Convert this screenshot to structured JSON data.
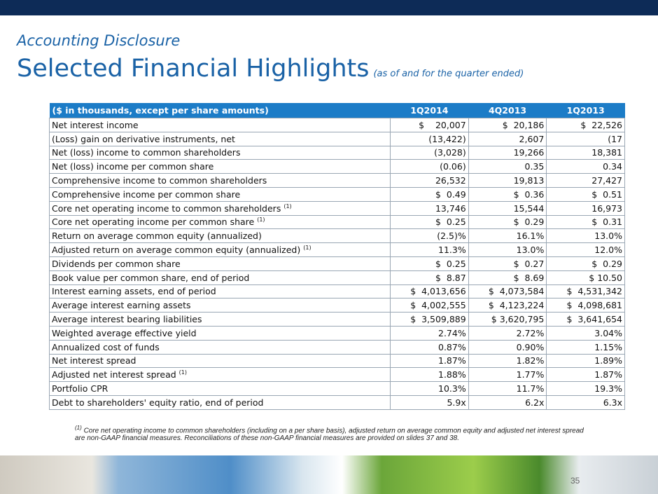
{
  "header": {
    "subtitle": "Accounting Disclosure",
    "title": "Selected Financial Highlights",
    "title_note": "(as of and for the quarter ended)"
  },
  "table": {
    "columns": [
      "($ in thousands, except per share amounts)",
      "1Q2014",
      "4Q2013",
      "1Q2013"
    ],
    "rows": [
      {
        "label": "Net interest income",
        "values": [
          "$    20,007",
          "$  20,186",
          "$  22,526"
        ]
      },
      {
        "label": "(Loss) gain on derivative instruments, net",
        "values": [
          "(13,422)",
          "2,607",
          "(17"
        ]
      },
      {
        "label": "Net (loss) income to common shareholders",
        "values": [
          "(3,028)",
          "19,266",
          "18,381"
        ]
      },
      {
        "label": "Net (loss) income per common share",
        "values": [
          "(0.06)",
          "0.35",
          "0.34"
        ]
      },
      {
        "label": "Comprehensive income to common shareholders",
        "values": [
          "26,532",
          "19,813",
          "27,427"
        ]
      },
      {
        "label": "Comprehensive income per common share",
        "values": [
          "$  0.49",
          "$  0.36",
          "$  0.51"
        ]
      },
      {
        "label": "Core net operating income to common shareholders",
        "note": "(1)",
        "values": [
          "13,746",
          "15,544",
          "16,973"
        ]
      },
      {
        "label": "Core net operating income per common share",
        "note": "(1)",
        "values": [
          "$  0.25",
          "$  0.29",
          "$  0.31"
        ]
      },
      {
        "label": "Return on average common equity (annualized)",
        "values": [
          "(2.5)%",
          "16.1%",
          "13.0%"
        ]
      },
      {
        "label": "Adjusted return on average common equity (annualized)",
        "note": "(1)",
        "values": [
          "11.3%",
          "13.0%",
          "12.0%"
        ]
      },
      {
        "label": "Dividends per common share",
        "values": [
          "$  0.25",
          "$  0.27",
          "$  0.29"
        ]
      },
      {
        "label": "Book value per common share, end of period",
        "values": [
          "$  8.87",
          "$  8.69",
          "$ 10.50"
        ]
      },
      {
        "label": "Interest earning assets, end of period",
        "values": [
          "$  4,013,656",
          "$  4,073,584",
          "$  4,531,342"
        ]
      },
      {
        "label": "Average interest earning assets",
        "values": [
          "$  4,002,555",
          "$  4,123,224",
          "$  4,098,681"
        ]
      },
      {
        "label": "Average interest bearing liabilities",
        "values": [
          "$  3,509,889",
          "$ 3,620,795",
          "$  3,641,654"
        ]
      },
      {
        "label": "Weighted average effective yield",
        "values": [
          "2.74%",
          "2.72%",
          "3.04%"
        ]
      },
      {
        "label": "Annualized cost of funds",
        "values": [
          "0.87%",
          "0.90%",
          "1.15%"
        ]
      },
      {
        "label": "Net interest spread",
        "values": [
          "1.87%",
          "1.82%",
          "1.89%"
        ]
      },
      {
        "label": "Adjusted net interest spread",
        "note": "(1)",
        "values": [
          "1.88%",
          "1.77%",
          "1.87%"
        ]
      },
      {
        "label": "Portfolio CPR",
        "values": [
          "10.3%",
          "11.7%",
          "19.3%"
        ]
      },
      {
        "label": "Debt to shareholders' equity ratio, end of period",
        "values": [
          "5.9x",
          "6.2x",
          "6.3x"
        ]
      }
    ]
  },
  "footnote": {
    "marker": "(1)",
    "text": "Core net operating income to common shareholders (including on a per share basis), adjusted return on average common equity and adjusted net interest spread are non-GAAP financial measures.  Reconciliations of these non-GAAP financial measures are provided on slides 37 and 38."
  },
  "page_number": "35"
}
